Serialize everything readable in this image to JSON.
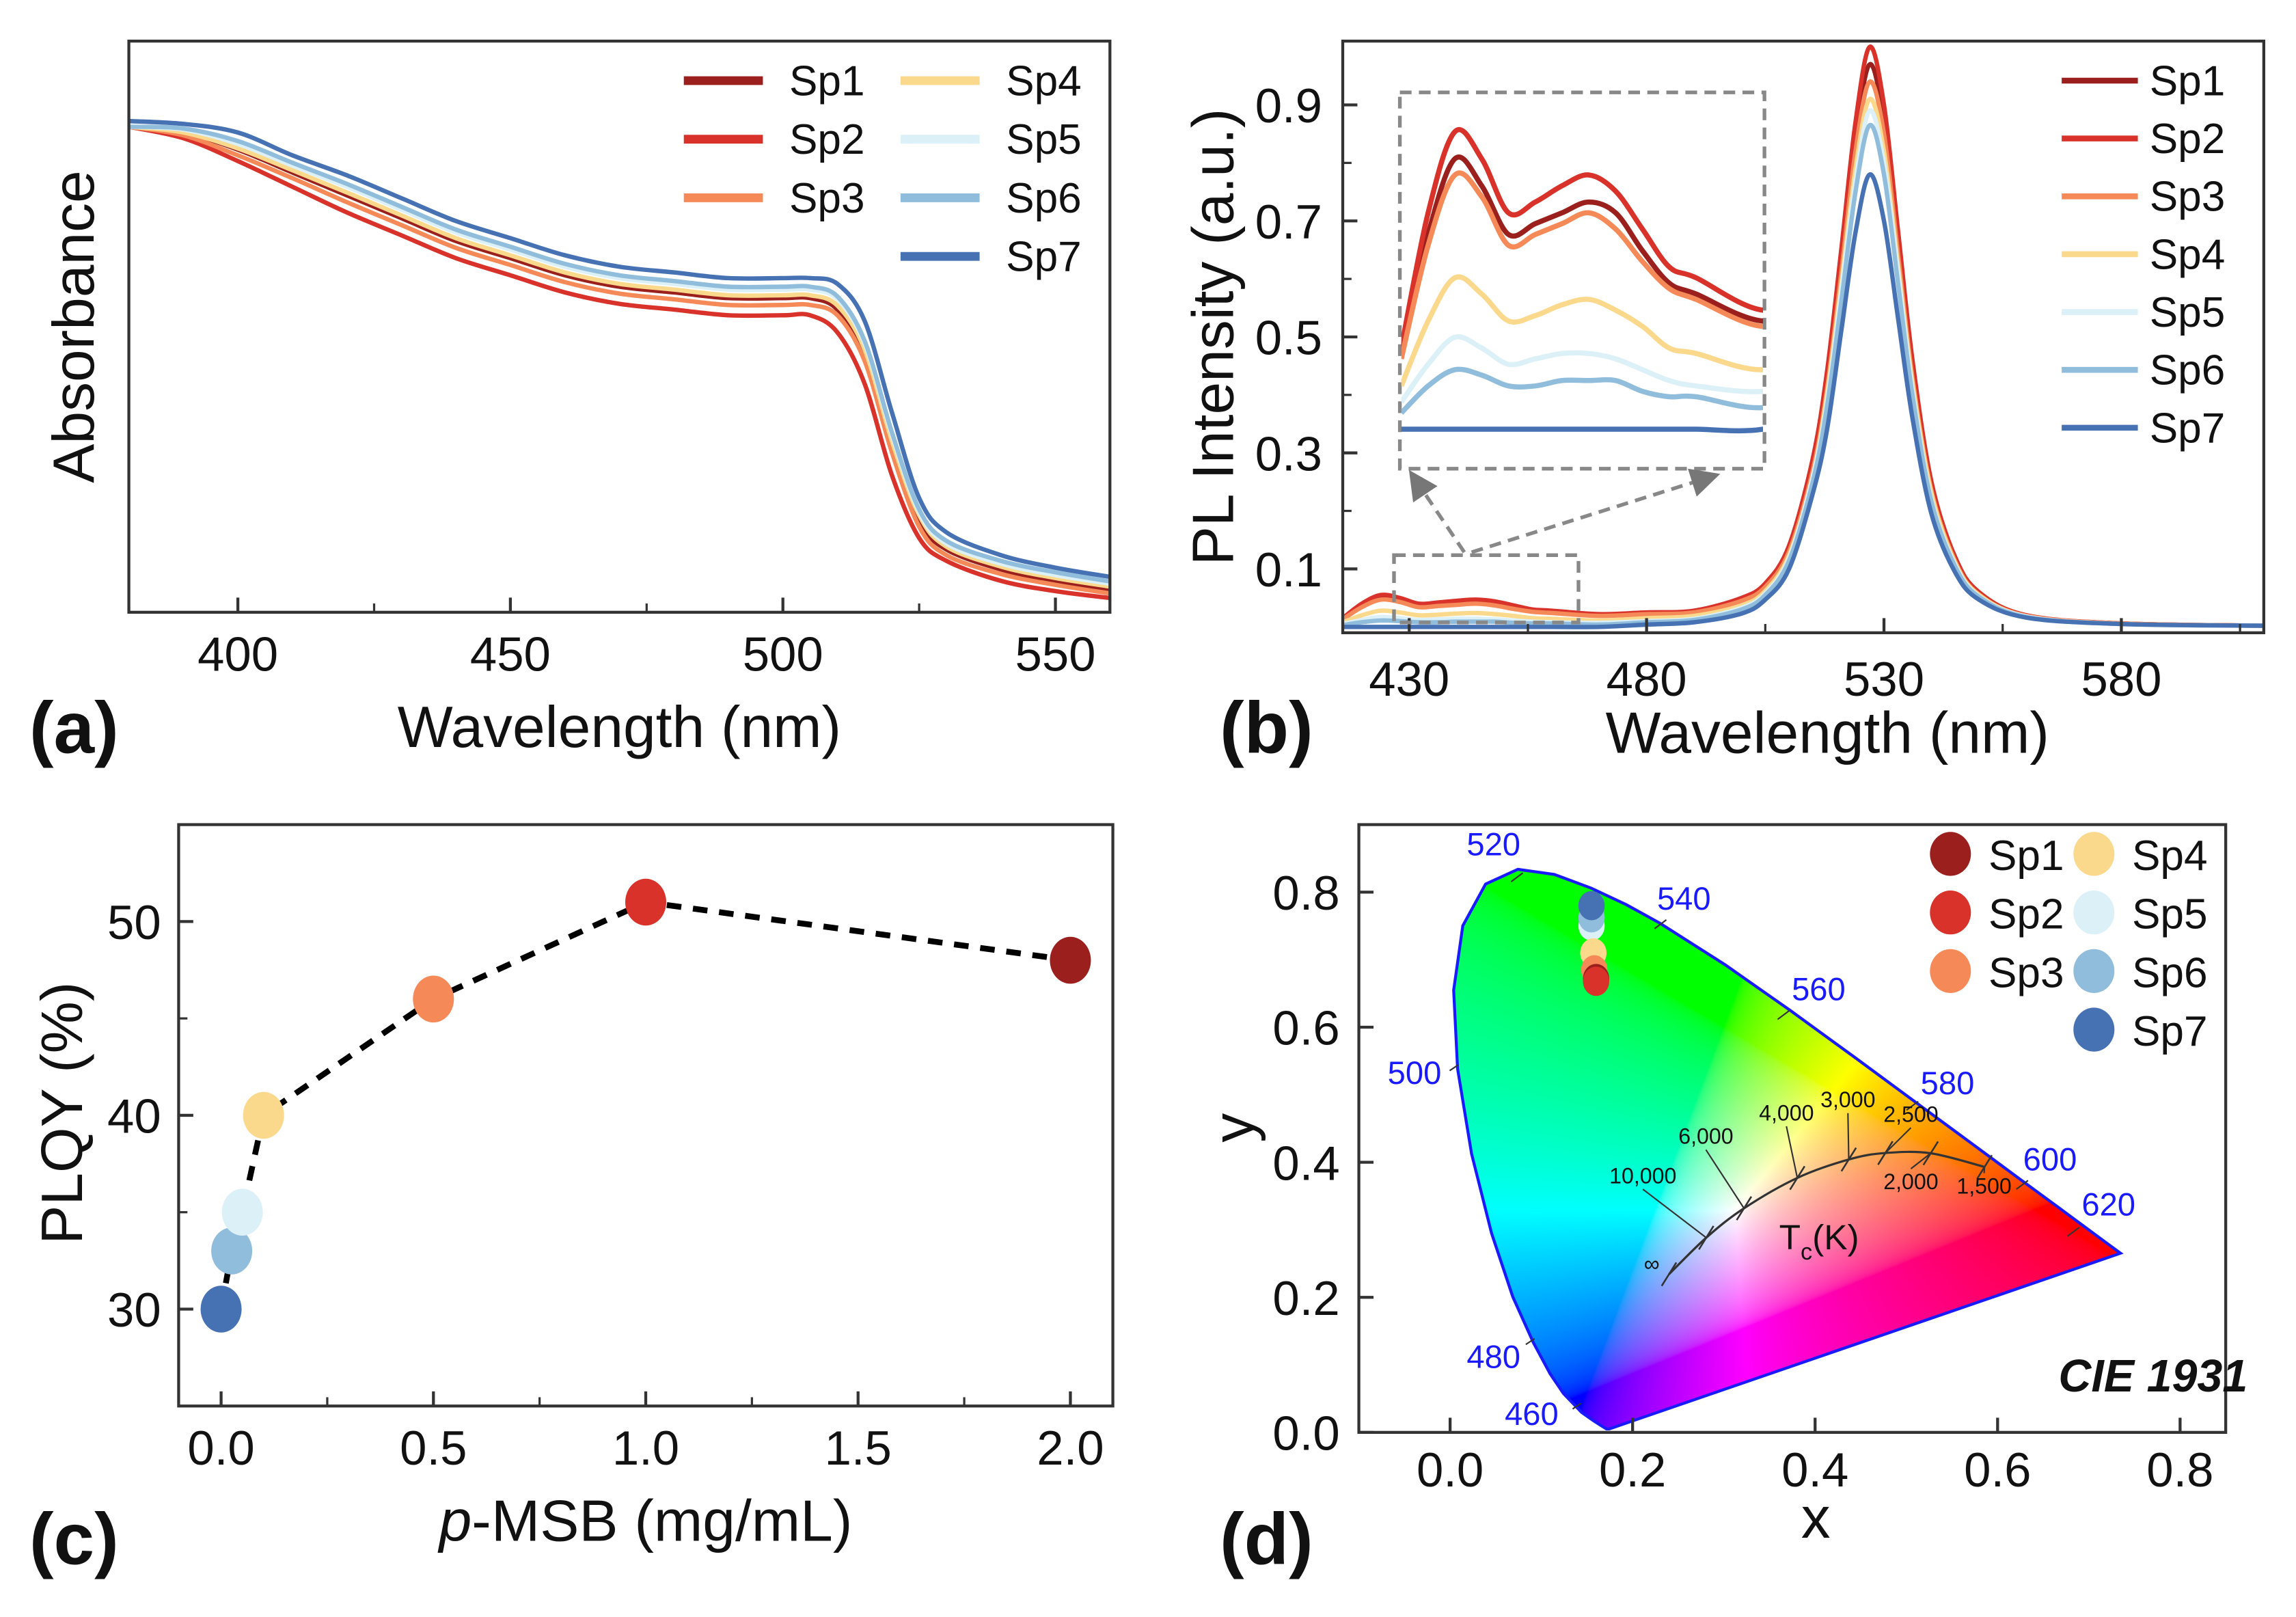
{
  "series_colors": {
    "Sp1": "#9b1f1c",
    "Sp2": "#d8322a",
    "Sp3": "#f58a58",
    "Sp4": "#fad98c",
    "Sp5": "#dcf0f7",
    "Sp6": "#90bddb",
    "Sp7": "#4672b4"
  },
  "panel_labels": [
    "(a)",
    "(b)",
    "(c)",
    "(d)"
  ],
  "chart_data": [
    {
      "type": "line",
      "xlabel": "Wavelength (nm)",
      "ylabel": "Absorbance",
      "xlim": [
        380,
        560
      ],
      "ylim": [
        0,
        1
      ],
      "xticks": [
        400,
        450,
        500,
        550
      ],
      "yticks_shown": false,
      "legend": "top-right",
      "x": [
        380,
        390,
        400,
        410,
        420,
        430,
        440,
        450,
        460,
        470,
        480,
        490,
        500,
        505,
        510,
        515,
        520,
        525,
        530,
        540,
        550,
        560
      ],
      "series": [
        {
          "name": "Sp1",
          "values": [
            0.85,
            0.84,
            0.81,
            0.77,
            0.73,
            0.69,
            0.65,
            0.62,
            0.59,
            0.57,
            0.56,
            0.55,
            0.55,
            0.55,
            0.53,
            0.45,
            0.29,
            0.16,
            0.11,
            0.075,
            0.055,
            0.04
          ]
        },
        {
          "name": "Sp2",
          "values": [
            0.85,
            0.83,
            0.79,
            0.745,
            0.7,
            0.66,
            0.62,
            0.59,
            0.56,
            0.54,
            0.53,
            0.52,
            0.52,
            0.52,
            0.49,
            0.4,
            0.24,
            0.13,
            0.09,
            0.055,
            0.037,
            0.025
          ]
        },
        {
          "name": "Sp3",
          "values": [
            0.85,
            0.835,
            0.8,
            0.76,
            0.718,
            0.678,
            0.638,
            0.608,
            0.578,
            0.558,
            0.548,
            0.538,
            0.538,
            0.538,
            0.52,
            0.44,
            0.28,
            0.15,
            0.1,
            0.067,
            0.048,
            0.033
          ]
        },
        {
          "name": "Sp4",
          "values": [
            0.85,
            0.84,
            0.812,
            0.774,
            0.735,
            0.695,
            0.655,
            0.625,
            0.595,
            0.575,
            0.565,
            0.555,
            0.555,
            0.555,
            0.537,
            0.46,
            0.3,
            0.17,
            0.115,
            0.08,
            0.06,
            0.045
          ]
        },
        {
          "name": "Sp5",
          "values": [
            0.85,
            0.845,
            0.82,
            0.782,
            0.745,
            0.705,
            0.665,
            0.635,
            0.605,
            0.585,
            0.575,
            0.565,
            0.565,
            0.565,
            0.548,
            0.47,
            0.31,
            0.175,
            0.12,
            0.085,
            0.065,
            0.05
          ]
        },
        {
          "name": "Sp6",
          "values": [
            0.85,
            0.847,
            0.825,
            0.787,
            0.75,
            0.71,
            0.67,
            0.64,
            0.61,
            0.59,
            0.58,
            0.57,
            0.57,
            0.57,
            0.553,
            0.475,
            0.315,
            0.18,
            0.125,
            0.09,
            0.07,
            0.054
          ]
        },
        {
          "name": "Sp7",
          "values": [
            0.86,
            0.855,
            0.84,
            0.8,
            0.765,
            0.725,
            0.685,
            0.655,
            0.625,
            0.605,
            0.595,
            0.585,
            0.585,
            0.585,
            0.575,
            0.51,
            0.35,
            0.2,
            0.14,
            0.1,
            0.078,
            0.062
          ]
        }
      ]
    },
    {
      "type": "line",
      "xlabel": "Wavelength (nm)",
      "ylabel": "PL Intensity (a.u.)",
      "xlim": [
        416,
        610
      ],
      "ylim": [
        0,
        1.01
      ],
      "xticks": [
        430,
        480,
        530,
        580
      ],
      "yticks": [
        0.1,
        0.3,
        0.5,
        0.7,
        0.9
      ],
      "legend": "top-right",
      "inset": {
        "xlim": [
          416,
          470
        ],
        "ylim": [
          0,
          0.062
        ]
      },
      "x": [
        416,
        420,
        424,
        428,
        432,
        436,
        440,
        444,
        448,
        452,
        456,
        460,
        470,
        480,
        490,
        500,
        505,
        510,
        515,
        518,
        521,
        524,
        527,
        530,
        533,
        536,
        540,
        545,
        550,
        560,
        580,
        610
      ],
      "series": [
        {
          "name": "Sp1",
          "values": [
            0.014,
            0.036,
            0.05,
            0.045,
            0.036,
            0.038,
            0.04,
            0.042,
            0.04,
            0.033,
            0.027,
            0.025,
            0.02,
            0.023,
            0.026,
            0.047,
            0.072,
            0.135,
            0.28,
            0.43,
            0.63,
            0.84,
            0.97,
            0.87,
            0.66,
            0.45,
            0.24,
            0.12,
            0.058,
            0.019,
            0.006,
            0.002
          ]
        },
        {
          "name": "Sp2",
          "values": [
            0.015,
            0.04,
            0.055,
            0.05,
            0.04,
            0.042,
            0.045,
            0.047,
            0.044,
            0.037,
            0.03,
            0.028,
            0.022,
            0.025,
            0.028,
            0.05,
            0.075,
            0.14,
            0.29,
            0.44,
            0.65,
            0.87,
            1.0,
            0.9,
            0.68,
            0.46,
            0.25,
            0.12,
            0.06,
            0.02,
            0.006,
            0.002
          ]
        },
        {
          "name": "Sp3",
          "values": [
            0.013,
            0.034,
            0.047,
            0.043,
            0.034,
            0.036,
            0.038,
            0.04,
            0.037,
            0.031,
            0.026,
            0.024,
            0.019,
            0.022,
            0.025,
            0.045,
            0.069,
            0.13,
            0.27,
            0.41,
            0.61,
            0.82,
            0.94,
            0.85,
            0.64,
            0.43,
            0.235,
            0.113,
            0.056,
            0.019,
            0.006,
            0.002
          ]
        },
        {
          "name": "Sp4",
          "values": [
            0.008,
            0.02,
            0.028,
            0.025,
            0.02,
            0.021,
            0.023,
            0.024,
            0.022,
            0.019,
            0.015,
            0.014,
            0.011,
            0.015,
            0.019,
            0.037,
            0.062,
            0.123,
            0.26,
            0.4,
            0.59,
            0.79,
            0.91,
            0.82,
            0.62,
            0.42,
            0.23,
            0.11,
            0.055,
            0.018,
            0.005,
            0.002
          ]
        },
        {
          "name": "Sp5",
          "values": [
            0.005,
            0.012,
            0.017,
            0.015,
            0.012,
            0.013,
            0.014,
            0.014,
            0.013,
            0.011,
            0.009,
            0.008,
            0.007,
            0.01,
            0.014,
            0.033,
            0.058,
            0.119,
            0.26,
            0.39,
            0.58,
            0.77,
            0.89,
            0.8,
            0.61,
            0.41,
            0.22,
            0.107,
            0.053,
            0.018,
            0.005,
            0.002
          ]
        },
        {
          "name": "Sp6",
          "values": [
            0.003,
            0.008,
            0.011,
            0.01,
            0.008,
            0.008,
            0.009,
            0.009,
            0.009,
            0.007,
            0.006,
            0.006,
            0.004,
            0.008,
            0.012,
            0.03,
            0.055,
            0.114,
            0.25,
            0.38,
            0.56,
            0.75,
            0.865,
            0.78,
            0.59,
            0.4,
            0.216,
            0.104,
            0.052,
            0.017,
            0.005,
            0.002
          ]
        },
        {
          "name": "Sp7",
          "values": [
            0,
            0,
            0,
            0,
            0,
            0,
            0,
            0,
            0,
            0,
            0,
            0,
            0,
            0.004,
            0.008,
            0.023,
            0.047,
            0.1,
            0.23,
            0.34,
            0.51,
            0.68,
            0.78,
            0.7,
            0.53,
            0.36,
            0.195,
            0.094,
            0.047,
            0.016,
            0.005,
            0.002
          ]
        }
      ]
    },
    {
      "type": "scatter",
      "xlabel_italic": "p",
      "xlabel_rest": "-MSB (mg/mL)",
      "ylabel": "PLQY (%)",
      "xlim": [
        -0.1,
        2.1
      ],
      "ylim": [
        25,
        55
      ],
      "xticks": [
        0.0,
        0.5,
        1.0,
        1.5,
        2.0
      ],
      "yticks": [
        30,
        40,
        50
      ],
      "connector": "dashed",
      "points": [
        {
          "name": "Sp7",
          "x": 0.0,
          "y": 30
        },
        {
          "name": "Sp6",
          "x": 0.025,
          "y": 33
        },
        {
          "name": "Sp5",
          "x": 0.05,
          "y": 35
        },
        {
          "name": "Sp4",
          "x": 0.1,
          "y": 40
        },
        {
          "name": "Sp3",
          "x": 0.5,
          "y": 46
        },
        {
          "name": "Sp2",
          "x": 1.0,
          "y": 51
        },
        {
          "name": "Sp1",
          "x": 2.0,
          "y": 48
        }
      ]
    },
    {
      "type": "scatter",
      "xlabel": "x",
      "ylabel": "y",
      "xlim": [
        -0.1,
        0.85
      ],
      "ylim": [
        0,
        0.9
      ],
      "xticks": [
        0.0,
        0.2,
        0.4,
        0.6,
        0.8
      ],
      "yticks": [
        0.0,
        0.2,
        0.4,
        0.6,
        0.8
      ],
      "legend": "top-right",
      "annotation": "CIE 1931",
      "wavelength_labels": [
        "460",
        "480",
        "500",
        "520",
        "540",
        "560",
        "580",
        "600",
        "620"
      ],
      "cct_labels": [
        "10,000",
        "6,000",
        "4,000",
        "3,000",
        "2,500",
        "2,000",
        "1,500",
        "∞"
      ],
      "cct_title": {
        "main": "T",
        "sub": "c",
        "rest": "(K)"
      },
      "points": [
        {
          "name": "Sp1",
          "x": 0.16,
          "y": 0.672
        },
        {
          "name": "Sp2",
          "x": 0.16,
          "y": 0.668
        },
        {
          "name": "Sp3",
          "x": 0.158,
          "y": 0.685
        },
        {
          "name": "Sp4",
          "x": 0.157,
          "y": 0.71
        },
        {
          "name": "Sp5",
          "x": 0.155,
          "y": 0.75
        },
        {
          "name": "Sp6",
          "x": 0.155,
          "y": 0.762
        },
        {
          "name": "Sp7",
          "x": 0.155,
          "y": 0.78
        }
      ]
    }
  ]
}
